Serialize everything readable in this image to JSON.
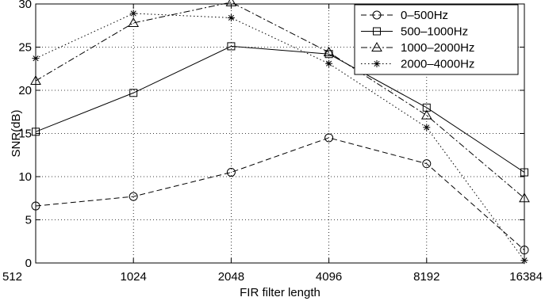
{
  "chart_data": {
    "type": "line",
    "title": "",
    "xlabel": "FIR filter length",
    "ylabel": "SNR(dB)",
    "categories": [
      "512",
      "1024",
      "2048",
      "4096",
      "8192",
      "16384"
    ],
    "ylim": [
      0,
      30
    ],
    "yticks": [
      "0",
      "5",
      "10",
      "15",
      "20",
      "25",
      "30"
    ],
    "grid": true,
    "legend_position": "top-right",
    "series": [
      {
        "name": "0–500Hz",
        "values": [
          6.6,
          7.7,
          10.5,
          14.5,
          11.5,
          1.5
        ],
        "marker": "circle",
        "dash": "dashed"
      },
      {
        "name": "500–1000Hz",
        "values": [
          15.2,
          19.7,
          25.1,
          24.2,
          18.0,
          10.5
        ],
        "marker": "square",
        "dash": "solid"
      },
      {
        "name": "1000–2000Hz",
        "values": [
          21.1,
          27.8,
          30.2,
          24.4,
          17.1,
          7.5
        ],
        "marker": "triangle",
        "dash": "dashdot"
      },
      {
        "name": "2000–4000Hz",
        "values": [
          23.7,
          28.9,
          28.4,
          23.1,
          15.7,
          0.3
        ],
        "marker": "star",
        "dash": "dotted"
      }
    ]
  }
}
